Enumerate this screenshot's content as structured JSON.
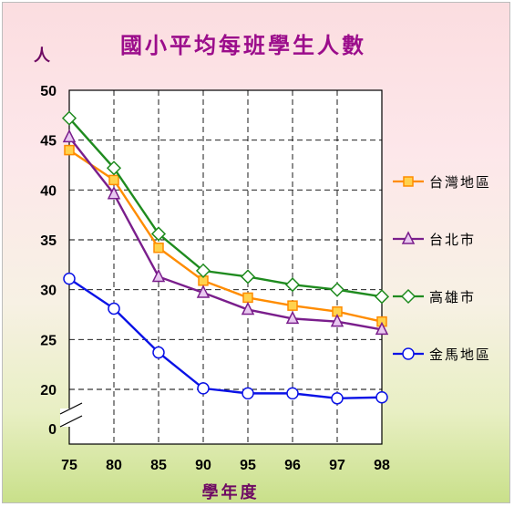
{
  "chart_data": {
    "type": "line",
    "title": "國小平均每班學生人數",
    "ylabel": "人",
    "xlabel": "學年度",
    "categories": [
      "75",
      "80",
      "85",
      "90",
      "95",
      "96",
      "97",
      "98"
    ],
    "y_ticks": [
      "50",
      "45",
      "40",
      "35",
      "30",
      "25",
      "20",
      "0"
    ],
    "ylim": [
      17,
      50
    ],
    "axis_break": true,
    "grid": true,
    "legend_position": "right",
    "series": [
      {
        "name": "台灣地區",
        "color": "#ff8c00",
        "marker": "square",
        "values": [
          44.0,
          41.0,
          34.2,
          30.9,
          29.2,
          28.4,
          27.8,
          26.8
        ]
      },
      {
        "name": "台北市",
        "color": "#7a1e8c",
        "marker": "triangle",
        "values": [
          45.3,
          39.6,
          31.3,
          29.7,
          28.0,
          27.1,
          26.8,
          26.0
        ]
      },
      {
        "name": "高雄市",
        "color": "#1f8b1f",
        "marker": "diamond",
        "values": [
          47.2,
          42.2,
          35.6,
          31.9,
          31.3,
          30.5,
          30.0,
          29.3
        ]
      },
      {
        "name": "金馬地區",
        "color": "#0a12e6",
        "marker": "circle",
        "values": [
          31.1,
          28.1,
          23.7,
          20.1,
          19.6,
          19.6,
          19.1,
          19.2
        ]
      }
    ]
  }
}
